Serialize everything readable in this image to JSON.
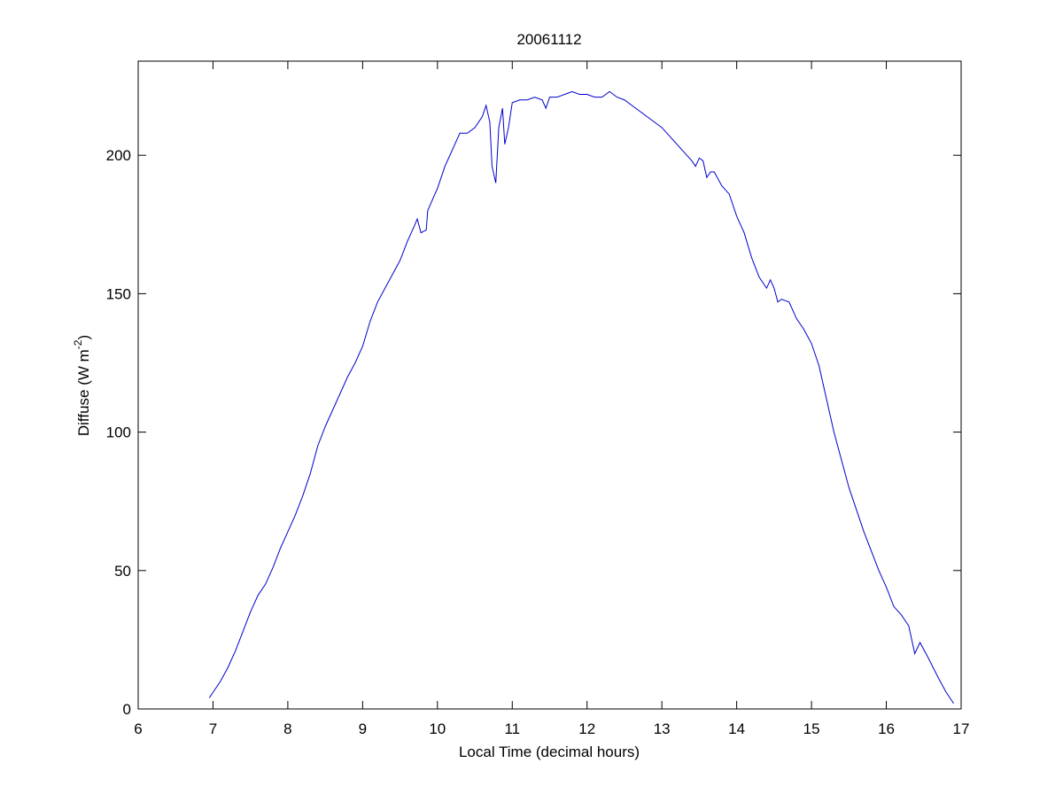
{
  "chart_data": {
    "type": "line",
    "title": "20061112",
    "xlabel": "Local Time (decimal hours)",
    "ylabel": {
      "text": "Diffuse (W m",
      "superscript": "-2",
      "after": ")"
    },
    "x": [
      6.95,
      7.0,
      7.1,
      7.2,
      7.3,
      7.4,
      7.5,
      7.6,
      7.7,
      7.8,
      7.9,
      8.0,
      8.1,
      8.2,
      8.3,
      8.4,
      8.5,
      8.6,
      8.7,
      8.8,
      8.9,
      9.0,
      9.1,
      9.2,
      9.3,
      9.4,
      9.5,
      9.6,
      9.7,
      9.73,
      9.78,
      9.85,
      9.87,
      9.95,
      10.0,
      10.1,
      10.2,
      10.3,
      10.4,
      10.5,
      10.6,
      10.65,
      10.7,
      10.73,
      10.78,
      10.82,
      10.87,
      10.9,
      10.95,
      11.0,
      11.1,
      11.2,
      11.3,
      11.4,
      11.45,
      11.5,
      11.6,
      11.7,
      11.8,
      11.9,
      12.0,
      12.1,
      12.2,
      12.3,
      12.4,
      12.5,
      12.6,
      12.7,
      12.8,
      12.9,
      13.0,
      13.1,
      13.2,
      13.3,
      13.4,
      13.45,
      13.5,
      13.55,
      13.6,
      13.65,
      13.7,
      13.8,
      13.9,
      14.0,
      14.1,
      14.2,
      14.3,
      14.4,
      14.45,
      14.5,
      14.55,
      14.6,
      14.7,
      14.8,
      14.9,
      15.0,
      15.1,
      15.2,
      15.3,
      15.4,
      15.5,
      15.6,
      15.7,
      15.8,
      15.9,
      16.0,
      16.1,
      16.2,
      16.3,
      16.38,
      16.45,
      16.55,
      16.7,
      16.8,
      16.9
    ],
    "series": [
      {
        "color": "#0000cc",
        "values": [
          4,
          6,
          10,
          15,
          21,
          28,
          35,
          41,
          45,
          51,
          58,
          64,
          70,
          77,
          85,
          95,
          102,
          108,
          114,
          120,
          125,
          131,
          140,
          147,
          152,
          157,
          162,
          169,
          175,
          177,
          172,
          173,
          180,
          185,
          188,
          196,
          202,
          208,
          208,
          210,
          214,
          218,
          212,
          196,
          190,
          210,
          217,
          204,
          210,
          219,
          220,
          220,
          221,
          220,
          217,
          221,
          221,
          222,
          223,
          222,
          222,
          221,
          221,
          223,
          221,
          220,
          218,
          216,
          214,
          212,
          210,
          207,
          204,
          201,
          198,
          196,
          199,
          198,
          192,
          194,
          194,
          189,
          186,
          178,
          172,
          163,
          156,
          152,
          155,
          152,
          147,
          148,
          147,
          141,
          137,
          132,
          124,
          112,
          100,
          90,
          80,
          72,
          64,
          57,
          50,
          44,
          37,
          34,
          30,
          20,
          24,
          19,
          11,
          6,
          2
        ]
      }
    ],
    "xlim": [
      6,
      17
    ],
    "ylim": [
      0,
      234
    ],
    "xticks": [
      6,
      7,
      8,
      9,
      10,
      11,
      12,
      13,
      14,
      15,
      16,
      17
    ],
    "yticks": [
      0,
      50,
      100,
      150,
      200
    ]
  }
}
